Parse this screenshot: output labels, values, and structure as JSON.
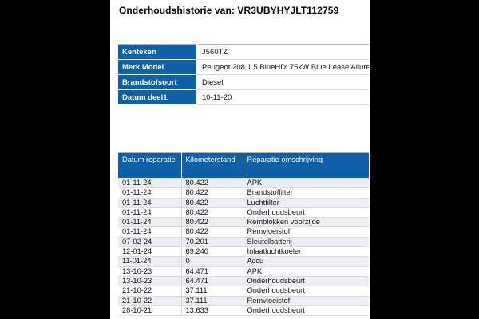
{
  "page": {
    "title": "Onderhoudshistorie van: VR3UBYHYJLT112759"
  },
  "colors": {
    "accent_blue": "#0e61a9",
    "stripe": "#ededf3",
    "panel_bg": "#ffffff",
    "frame_bg": "#000000"
  },
  "vehicle_info": {
    "rows": [
      {
        "label": "Kenteken",
        "value": "J560TZ"
      },
      {
        "label": "Merk Model",
        "value": "Peugeot 208 1.5 BlueHDi 75kW Blue Lease Allure"
      },
      {
        "label": "Brandstofsoort",
        "value": "Diesel"
      },
      {
        "label": "Datum deel1",
        "value": "10-11-20"
      }
    ]
  },
  "history": {
    "columns": [
      "Datum reparatie",
      "Kilometerstand",
      "Reparatie omschrijving"
    ],
    "rows": [
      [
        "01-11-24",
        "80.422",
        "APK"
      ],
      [
        "01-11-24",
        "80.422",
        "Brandstoffilter"
      ],
      [
        "01-11-24",
        "80.422",
        "Luchtfilter"
      ],
      [
        "01-11-24",
        "80.422",
        "Onderhoudsbeurt"
      ],
      [
        "01-11-24",
        "80.422",
        "Remblokken voorzijde"
      ],
      [
        "01-11-24",
        "80.422",
        "Remvloeistof"
      ],
      [
        "07-02-24",
        "70.201",
        "Sleutelbatterij"
      ],
      [
        "12-01-24",
        "69.240",
        "Inlaatluchtkoeler"
      ],
      [
        "11-01-24",
        "0",
        "Accu"
      ],
      [
        "13-10-23",
        "64.471",
        "APK"
      ],
      [
        "13-10-23",
        "64.471",
        "Onderhoudsbeurt"
      ],
      [
        "21-10-22",
        "37.111",
        "Onderhoudsbeurt"
      ],
      [
        "21-10-22",
        "37.111",
        "Remvloeistof"
      ],
      [
        "28-10-21",
        "13.633",
        "Onderhoudsbeurt"
      ]
    ]
  }
}
